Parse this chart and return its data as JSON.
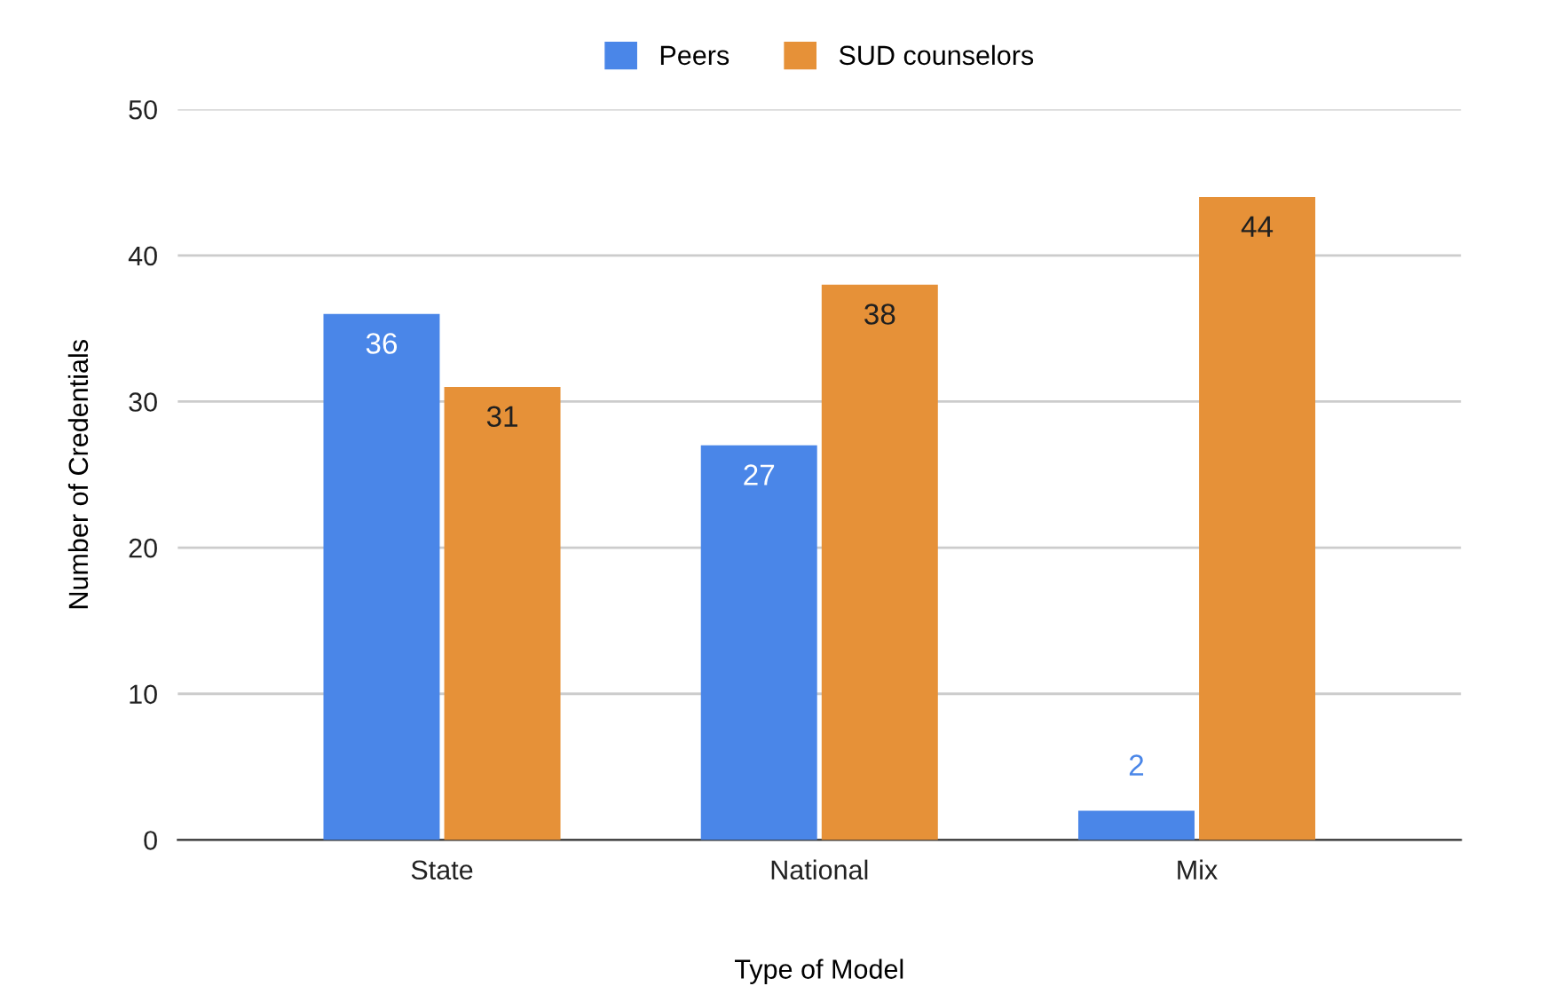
{
  "chart_data": {
    "type": "bar",
    "xlabel": "Type of Model",
    "ylabel": "Number of Credentials",
    "categories": [
      "State",
      "National",
      "Mix"
    ],
    "series": [
      {
        "name": "Peers",
        "color": "#4a86e8",
        "values": [
          36,
          27,
          2
        ]
      },
      {
        "name": "SUD counselors",
        "color": "#e69138",
        "values": [
          31,
          38,
          44
        ]
      }
    ],
    "ylim": [
      0,
      50
    ],
    "yticks": [
      0,
      10,
      20,
      30,
      40,
      50
    ],
    "grid": "y",
    "legend": "top",
    "data_labels": true
  }
}
